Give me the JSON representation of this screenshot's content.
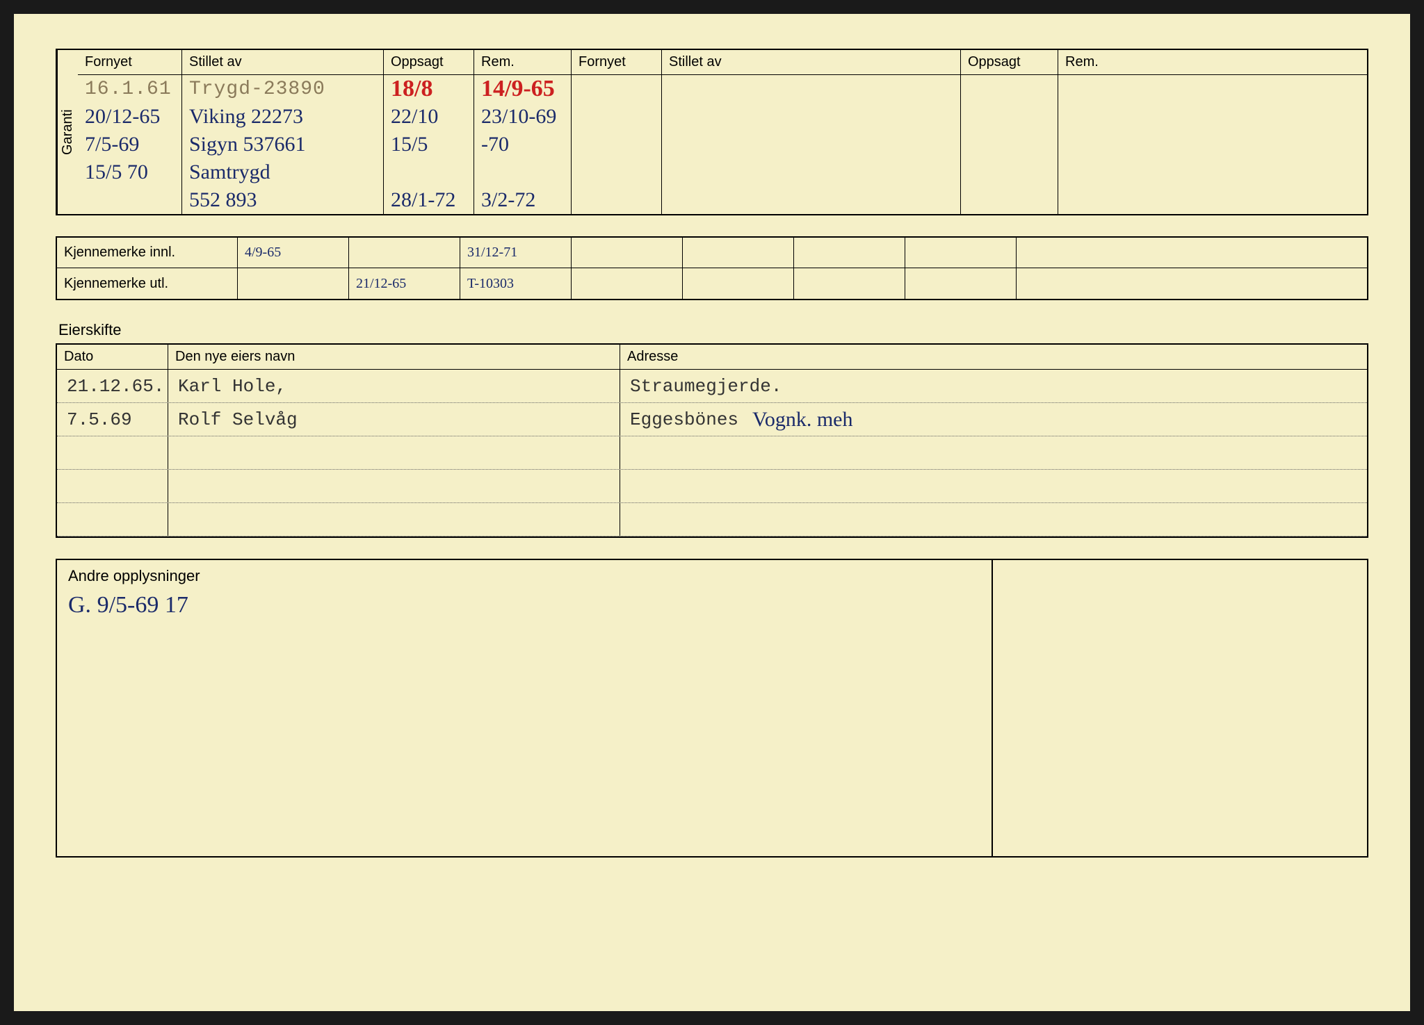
{
  "colors": {
    "card_bg": "#f5f0c8",
    "page_bg": "#1a1a1a",
    "line": "#000000",
    "typed": "#8a7a5a",
    "handwritten": "#1a2a6a",
    "handwritten_red": "#cc2020"
  },
  "garanti": {
    "side_label": "Garanti",
    "headers": {
      "fornyet": "Fornyet",
      "stillet": "Stillet av",
      "oppsagt": "Oppsagt",
      "rem": "Rem.",
      "fornyet2": "Fornyet",
      "stillet2": "Stillet av",
      "oppsagt2": "Oppsagt",
      "rem2": "Rem."
    },
    "rows": [
      {
        "fornyet": "16.1.61",
        "stillet": "Trygd-23890",
        "oppsagt": "18/8",
        "rem": "14/9-65",
        "style_fornyet": "typed",
        "style_stillet": "typed",
        "style_oppsagt": "handwritten-red",
        "style_rem": "handwritten-red"
      },
      {
        "fornyet": "20/12-65",
        "stillet": "Viking 22273",
        "oppsagt": "22/10",
        "rem": "23/10-69",
        "style_fornyet": "handwritten",
        "style_stillet": "handwritten",
        "style_oppsagt": "handwritten",
        "style_rem": "handwritten"
      },
      {
        "fornyet": "7/5-69",
        "stillet": "Sigyn 537661",
        "oppsagt": "15/5",
        "rem": "-70",
        "style_fornyet": "handwritten",
        "style_stillet": "handwritten",
        "style_oppsagt": "handwritten",
        "style_rem": "handwritten"
      },
      {
        "fornyet": "15/5 70",
        "stillet": "Samtrygd",
        "oppsagt": "",
        "rem": "",
        "style_fornyet": "handwritten",
        "style_stillet": "handwritten",
        "style_oppsagt": "handwritten",
        "style_rem": "handwritten"
      },
      {
        "fornyet": "",
        "stillet": "552 893",
        "oppsagt": "28/1-72",
        "rem": "3/2-72",
        "style_fornyet": "handwritten",
        "style_stillet": "handwritten",
        "style_oppsagt": "handwritten",
        "style_rem": "handwritten"
      }
    ]
  },
  "kjennemerke": {
    "innl_label": "Kjennemerke innl.",
    "utl_label": "Kjennemerke utl.",
    "innl": [
      "4/9-65",
      "",
      "31/12-71",
      "",
      "",
      "",
      "",
      ""
    ],
    "utl": [
      "",
      "21/12-65",
      "T-10303",
      "",
      "",
      "",
      "",
      ""
    ]
  },
  "eierskifte": {
    "title": "Eierskifte",
    "headers": {
      "dato": "Dato",
      "navn": "Den nye eiers navn",
      "adresse": "Adresse"
    },
    "rows": [
      {
        "dato": "21.12.65.",
        "navn": "Karl Hole,",
        "adresse": "Straumegjerde.",
        "note": ""
      },
      {
        "dato": "7.5.69",
        "navn": "Rolf Selvåg",
        "adresse": "Eggesbönes",
        "note": "Vognk. meh"
      },
      {
        "dato": "",
        "navn": "",
        "adresse": "",
        "note": ""
      },
      {
        "dato": "",
        "navn": "",
        "adresse": "",
        "note": ""
      },
      {
        "dato": "",
        "navn": "",
        "adresse": "",
        "note": ""
      }
    ]
  },
  "andre": {
    "title": "Andre opplysninger",
    "note_prefix": "G.",
    "note": "9/5-69 17"
  }
}
